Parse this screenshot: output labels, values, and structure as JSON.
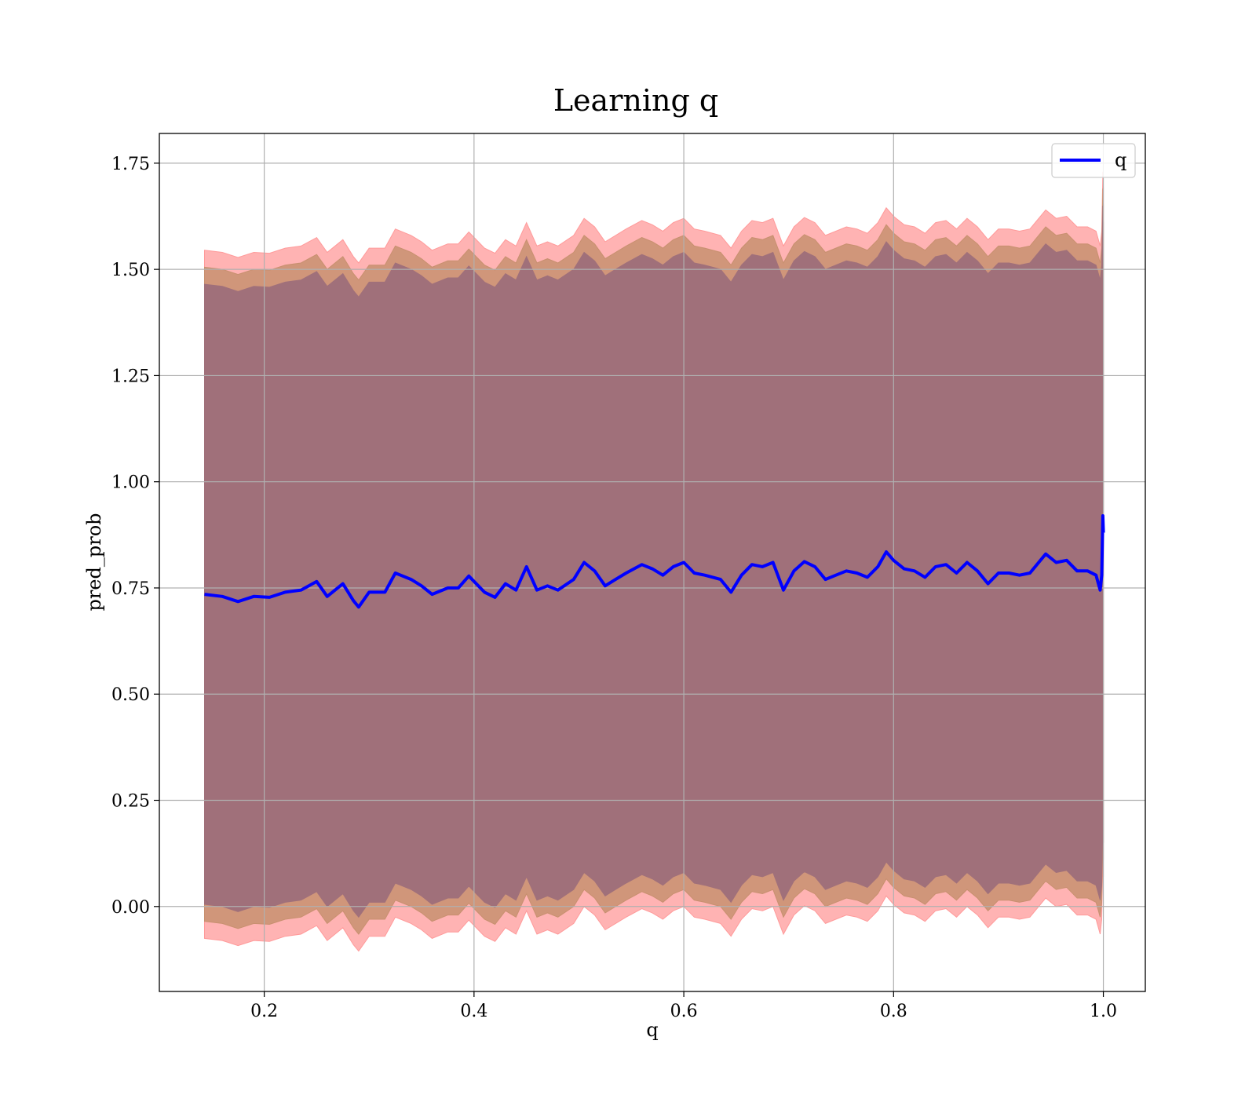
{
  "chart_data": {
    "type": "line",
    "title": "Learning q",
    "xlabel": "q",
    "ylabel": "pred_prob",
    "xlim": [
      0.1,
      1.04
    ],
    "ylim": [
      -0.2,
      1.82
    ],
    "x_ticks": [
      0.2,
      0.4,
      0.6,
      0.8,
      1.0
    ],
    "x_tick_labels": [
      "0.2",
      "0.4",
      "0.6",
      "0.8",
      "1.0"
    ],
    "y_ticks": [
      0.0,
      0.25,
      0.5,
      0.75,
      1.0,
      1.25,
      1.5,
      1.75
    ],
    "y_tick_labels": [
      "0.00",
      "0.25",
      "0.50",
      "0.75",
      "1.00",
      "1.25",
      "1.50",
      "1.75"
    ],
    "grid": true,
    "legend": {
      "position": "top-right",
      "entries": [
        "q"
      ]
    },
    "colors": {
      "line": "#0000ff",
      "band_outer": "#ff9a9a",
      "band_middle": "#c89070",
      "band_inner": "#a0707a",
      "axes": "#000000",
      "grid": "#b0b0b0"
    },
    "series": [
      {
        "name": "q",
        "points": [
          [
            0.143,
            0.735
          ],
          [
            0.16,
            0.73
          ],
          [
            0.175,
            0.718
          ],
          [
            0.19,
            0.73
          ],
          [
            0.205,
            0.728
          ],
          [
            0.22,
            0.74
          ],
          [
            0.235,
            0.745
          ],
          [
            0.25,
            0.765
          ],
          [
            0.26,
            0.73
          ],
          [
            0.275,
            0.76
          ],
          [
            0.285,
            0.72
          ],
          [
            0.29,
            0.705
          ],
          [
            0.3,
            0.74
          ],
          [
            0.315,
            0.74
          ],
          [
            0.325,
            0.785
          ],
          [
            0.34,
            0.77
          ],
          [
            0.35,
            0.755
          ],
          [
            0.36,
            0.735
          ],
          [
            0.375,
            0.75
          ],
          [
            0.385,
            0.75
          ],
          [
            0.395,
            0.778
          ],
          [
            0.41,
            0.74
          ],
          [
            0.42,
            0.728
          ],
          [
            0.43,
            0.76
          ],
          [
            0.44,
            0.745
          ],
          [
            0.45,
            0.8
          ],
          [
            0.46,
            0.745
          ],
          [
            0.47,
            0.755
          ],
          [
            0.48,
            0.745
          ],
          [
            0.495,
            0.77
          ],
          [
            0.505,
            0.81
          ],
          [
            0.515,
            0.79
          ],
          [
            0.525,
            0.755
          ],
          [
            0.535,
            0.77
          ],
          [
            0.545,
            0.785
          ],
          [
            0.56,
            0.805
          ],
          [
            0.57,
            0.795
          ],
          [
            0.58,
            0.78
          ],
          [
            0.59,
            0.8
          ],
          [
            0.6,
            0.81
          ],
          [
            0.61,
            0.785
          ],
          [
            0.62,
            0.78
          ],
          [
            0.635,
            0.77
          ],
          [
            0.645,
            0.74
          ],
          [
            0.655,
            0.78
          ],
          [
            0.665,
            0.805
          ],
          [
            0.675,
            0.8
          ],
          [
            0.685,
            0.81
          ],
          [
            0.695,
            0.745
          ],
          [
            0.705,
            0.79
          ],
          [
            0.715,
            0.812
          ],
          [
            0.725,
            0.8
          ],
          [
            0.735,
            0.77
          ],
          [
            0.745,
            0.78
          ],
          [
            0.755,
            0.79
          ],
          [
            0.765,
            0.785
          ],
          [
            0.775,
            0.775
          ],
          [
            0.785,
            0.8
          ],
          [
            0.793,
            0.835
          ],
          [
            0.8,
            0.815
          ],
          [
            0.81,
            0.795
          ],
          [
            0.82,
            0.79
          ],
          [
            0.83,
            0.775
          ],
          [
            0.84,
            0.8
          ],
          [
            0.85,
            0.805
          ],
          [
            0.86,
            0.785
          ],
          [
            0.87,
            0.81
          ],
          [
            0.88,
            0.79
          ],
          [
            0.89,
            0.76
          ],
          [
            0.9,
            0.785
          ],
          [
            0.91,
            0.785
          ],
          [
            0.92,
            0.78
          ],
          [
            0.93,
            0.785
          ],
          [
            0.945,
            0.83
          ],
          [
            0.955,
            0.81
          ],
          [
            0.965,
            0.815
          ],
          [
            0.975,
            0.79
          ],
          [
            0.985,
            0.79
          ],
          [
            0.993,
            0.78
          ],
          [
            0.997,
            0.745
          ],
          [
            0.9985,
            0.78
          ],
          [
            0.9995,
            0.92
          ],
          [
            1.0,
            0.88
          ]
        ]
      }
    ],
    "bands": [
      {
        "offset_top": 0.81,
        "offset_bottom": -0.81
      },
      {
        "offset_top": 0.77,
        "offset_bottom": -0.77
      },
      {
        "offset_top": 0.73,
        "offset_bottom": -0.73
      }
    ]
  }
}
